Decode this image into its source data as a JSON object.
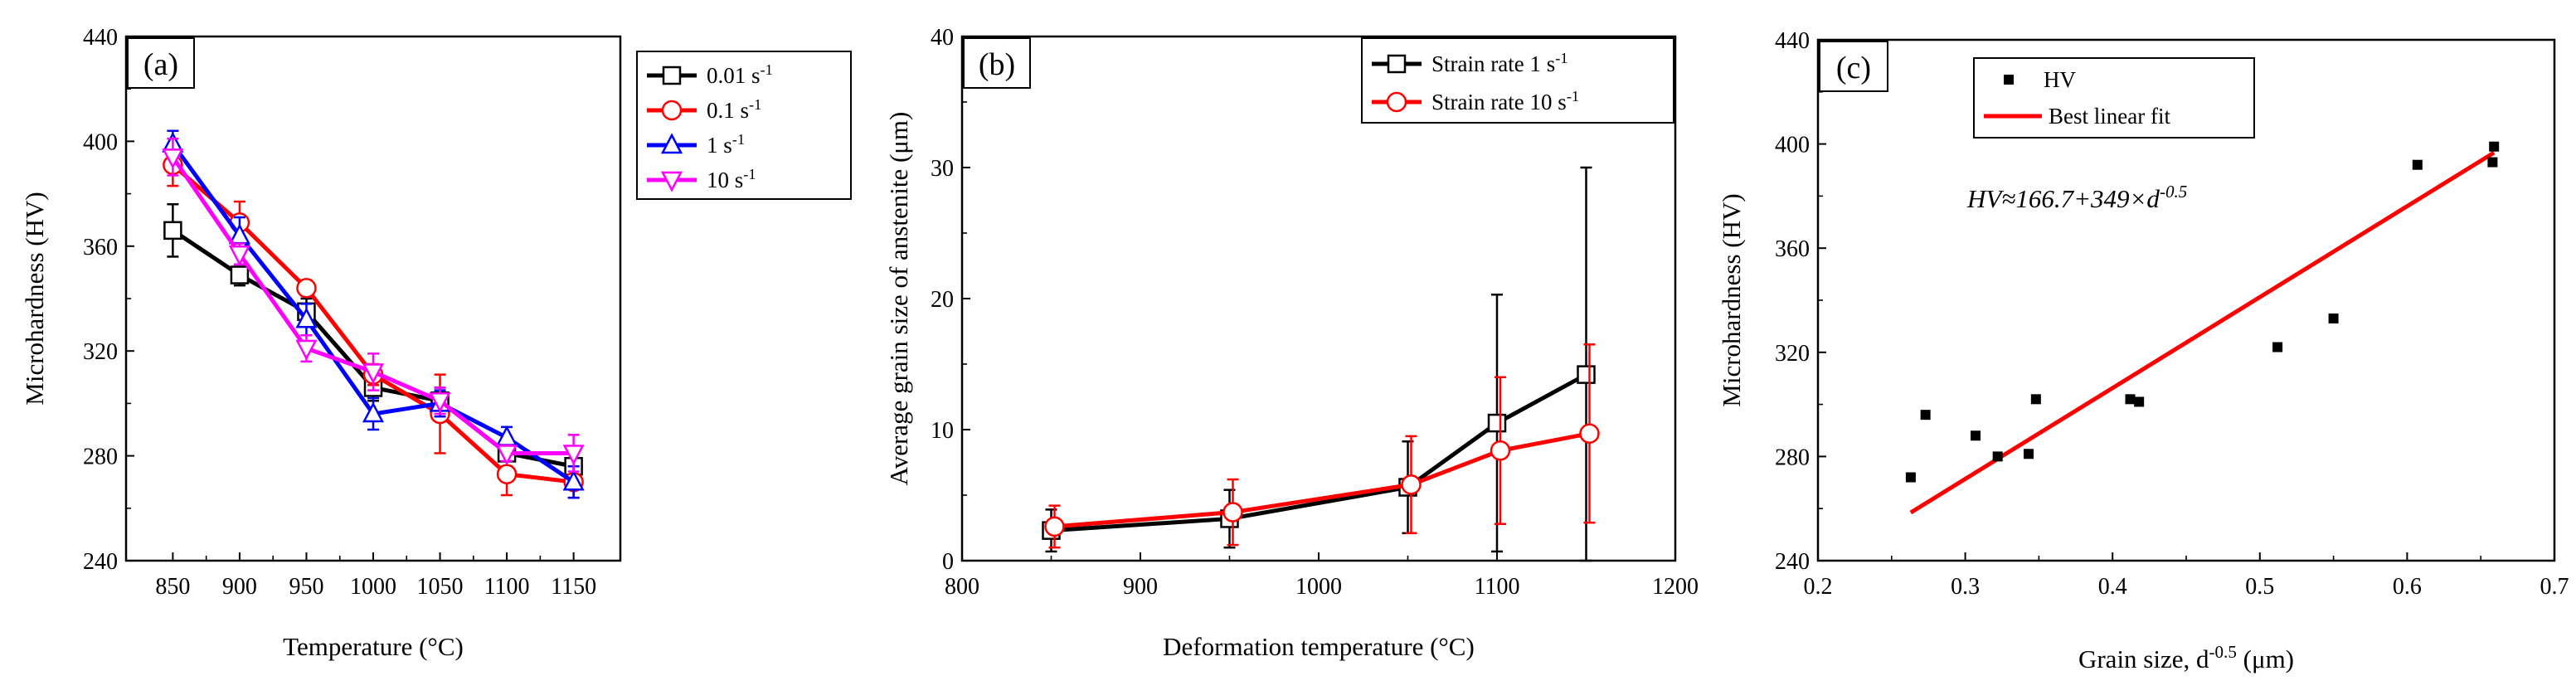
{
  "chart_data": [
    {
      "panel": "(a)",
      "type": "line",
      "xlabel": "Temperature (°C)",
      "ylabel": "Microhardness (HV)",
      "xlim": [
        815,
        1185
      ],
      "ylim": [
        240,
        440
      ],
      "xticks": [
        850,
        900,
        950,
        1000,
        1050,
        1100,
        1150
      ],
      "yticks": [
        240,
        280,
        320,
        360,
        400,
        440
      ],
      "legend_position": "top-right",
      "categories": [
        850,
        900,
        950,
        1000,
        1050,
        1100,
        1150
      ],
      "series": [
        {
          "name": "0.01 s",
          "sup": "-1",
          "color": "#000000",
          "marker": "square",
          "values": [
            366,
            349,
            335,
            306,
            301,
            281,
            276
          ],
          "errors": [
            10,
            4,
            5,
            5,
            5,
            5,
            6
          ]
        },
        {
          "name": "0.1 s",
          "sup": "-1",
          "color": "#ff0000",
          "marker": "circle",
          "values": [
            391,
            369,
            344,
            311,
            296,
            273,
            270
          ],
          "errors": [
            8,
            8,
            3,
            4,
            15,
            8,
            6
          ]
        },
        {
          "name": "1 s",
          "sup": "-1",
          "color": "#0000ff",
          "marker": "triangle-up",
          "values": [
            399,
            364,
            332,
            296,
            300,
            287,
            270
          ],
          "errors": [
            5,
            7,
            6,
            6,
            5,
            4,
            6
          ]
        },
        {
          "name": "10 s",
          "sup": "-1",
          "color": "#ff00ff",
          "marker": "triangle-down",
          "values": [
            394,
            357,
            321,
            312,
            301,
            281,
            281
          ],
          "errors": [
            7,
            4,
            5,
            7,
            5,
            3,
            7
          ]
        }
      ]
    },
    {
      "panel": "(b)",
      "type": "line",
      "xlabel": "Deformation temperature (°C)",
      "ylabel": "Average grain size of anstenite (μm)",
      "xlim": [
        800,
        1200
      ],
      "ylim": [
        0,
        40
      ],
      "xticks": [
        800,
        900,
        1000,
        1100,
        1200
      ],
      "yticks": [
        0,
        10,
        20,
        30,
        40
      ],
      "legend_position": "top-right",
      "series": [
        {
          "name": "Strain rate 1 s",
          "sup": "-1",
          "color": "#000000",
          "marker": "square",
          "x": [
            850,
            950,
            1050,
            1100,
            1150
          ],
          "values": [
            2.3,
            3.2,
            5.6,
            10.5,
            14.2
          ],
          "errors": [
            1.6,
            2.2,
            3.5,
            9.8,
            15.8
          ]
        },
        {
          "name": "Strain rate 10 s",
          "sup": "-1",
          "color": "#ff0000",
          "marker": "circle",
          "x": [
            850,
            950,
            1050,
            1100,
            1150
          ],
          "values": [
            2.6,
            3.7,
            5.8,
            8.4,
            9.7
          ],
          "errors": [
            1.6,
            2.5,
            3.7,
            5.6,
            6.8
          ]
        }
      ]
    },
    {
      "panel": "(c)",
      "type": "scatter",
      "xlabel_main": "Grain size, d",
      "xlabel_sup": "-0.5",
      "xlabel_unit": " (μm)",
      "ylabel": "Microhardness (HV)",
      "xlim": [
        0.2,
        0.7
      ],
      "ylim": [
        240,
        440
      ],
      "xticks": [
        "0.2",
        "0.3",
        "0.4",
        "0.5",
        "0.6",
        "0.7"
      ],
      "yticks": [
        240,
        280,
        320,
        360,
        400,
        440
      ],
      "legend_position": "top-left",
      "legend": {
        "points": "HV",
        "fit": "Best linear fit"
      },
      "equation": {
        "main": "HV≈166.7+349×d",
        "sup": "-0.5"
      },
      "points": [
        {
          "x": 0.263,
          "y": 272
        },
        {
          "x": 0.273,
          "y": 296
        },
        {
          "x": 0.307,
          "y": 288
        },
        {
          "x": 0.322,
          "y": 280
        },
        {
          "x": 0.343,
          "y": 281
        },
        {
          "x": 0.348,
          "y": 302
        },
        {
          "x": 0.412,
          "y": 302
        },
        {
          "x": 0.418,
          "y": 301
        },
        {
          "x": 0.512,
          "y": 322
        },
        {
          "x": 0.55,
          "y": 333
        },
        {
          "x": 0.607,
          "y": 392
        },
        {
          "x": 0.658,
          "y": 393
        },
        {
          "x": 0.659,
          "y": 399
        }
      ],
      "fit": {
        "intercept": 166.7,
        "slope": 349,
        "x_range": [
          0.263,
          0.659
        ],
        "color": "#ff0000"
      }
    }
  ]
}
